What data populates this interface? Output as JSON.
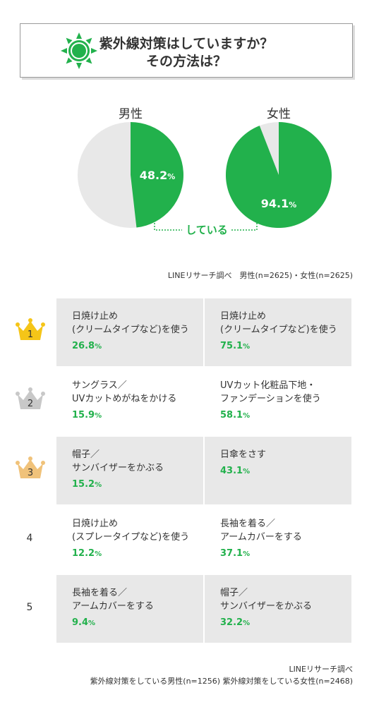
{
  "title": {
    "line1": "紫外線対策はしていますか？",
    "line2": "その方法は？"
  },
  "colors": {
    "green": "#22b14c",
    "gray": "#e8e8e8",
    "gold": "#f5c518",
    "silver": "#c8c8c8",
    "bronze": "#f0c27a"
  },
  "chart_data": {
    "type": "pie",
    "charts": [
      {
        "label": "男性",
        "value": 48.2,
        "value_text": "48.2",
        "unit": "%"
      },
      {
        "label": "女性",
        "value": 94.1,
        "value_text": "94.1",
        "unit": "%"
      }
    ],
    "annotation": "している",
    "source": "LINEリサーチ調べ　男性(n=2625)・女性(n=2625)"
  },
  "ranking": {
    "rows": [
      {
        "rank": "1",
        "male": {
          "item": "日焼け止め\n(クリームタイプなど)を使う",
          "pct": "26.8",
          "unit": "%"
        },
        "female": {
          "item": "日焼け止め\n(クリームタイプなど)を使う",
          "pct": "75.1",
          "unit": "%"
        }
      },
      {
        "rank": "2",
        "male": {
          "item": "サングラス／\nUVカットめがねをかける",
          "pct": "15.9",
          "unit": "%"
        },
        "female": {
          "item": "UVカット化粧品下地・\nファンデーションを使う",
          "pct": "58.1",
          "unit": "%"
        }
      },
      {
        "rank": "3",
        "male": {
          "item": "帽子／\nサンバイザーをかぶる",
          "pct": "15.2",
          "unit": "%"
        },
        "female": {
          "item": "日傘をさす",
          "pct": "43.1",
          "unit": "%"
        }
      },
      {
        "rank": "4",
        "male": {
          "item": "日焼け止め\n(スプレータイプなど)を使う",
          "pct": "12.2",
          "unit": "%"
        },
        "female": {
          "item": "長袖を着る／\nアームカバーをする",
          "pct": "37.1",
          "unit": "%"
        }
      },
      {
        "rank": "5",
        "male": {
          "item": "長袖を着る／\nアームカバーをする",
          "pct": "9.4",
          "unit": "%"
        },
        "female": {
          "item": "帽子／\nサンバイザーをかぶる",
          "pct": "32.2",
          "unit": "%"
        }
      }
    ],
    "source_line1": "LINEリサーチ調べ",
    "source_line2": "紫外線対策をしている男性(n=1256) 紫外線対策をしている女性(n=2468)"
  }
}
